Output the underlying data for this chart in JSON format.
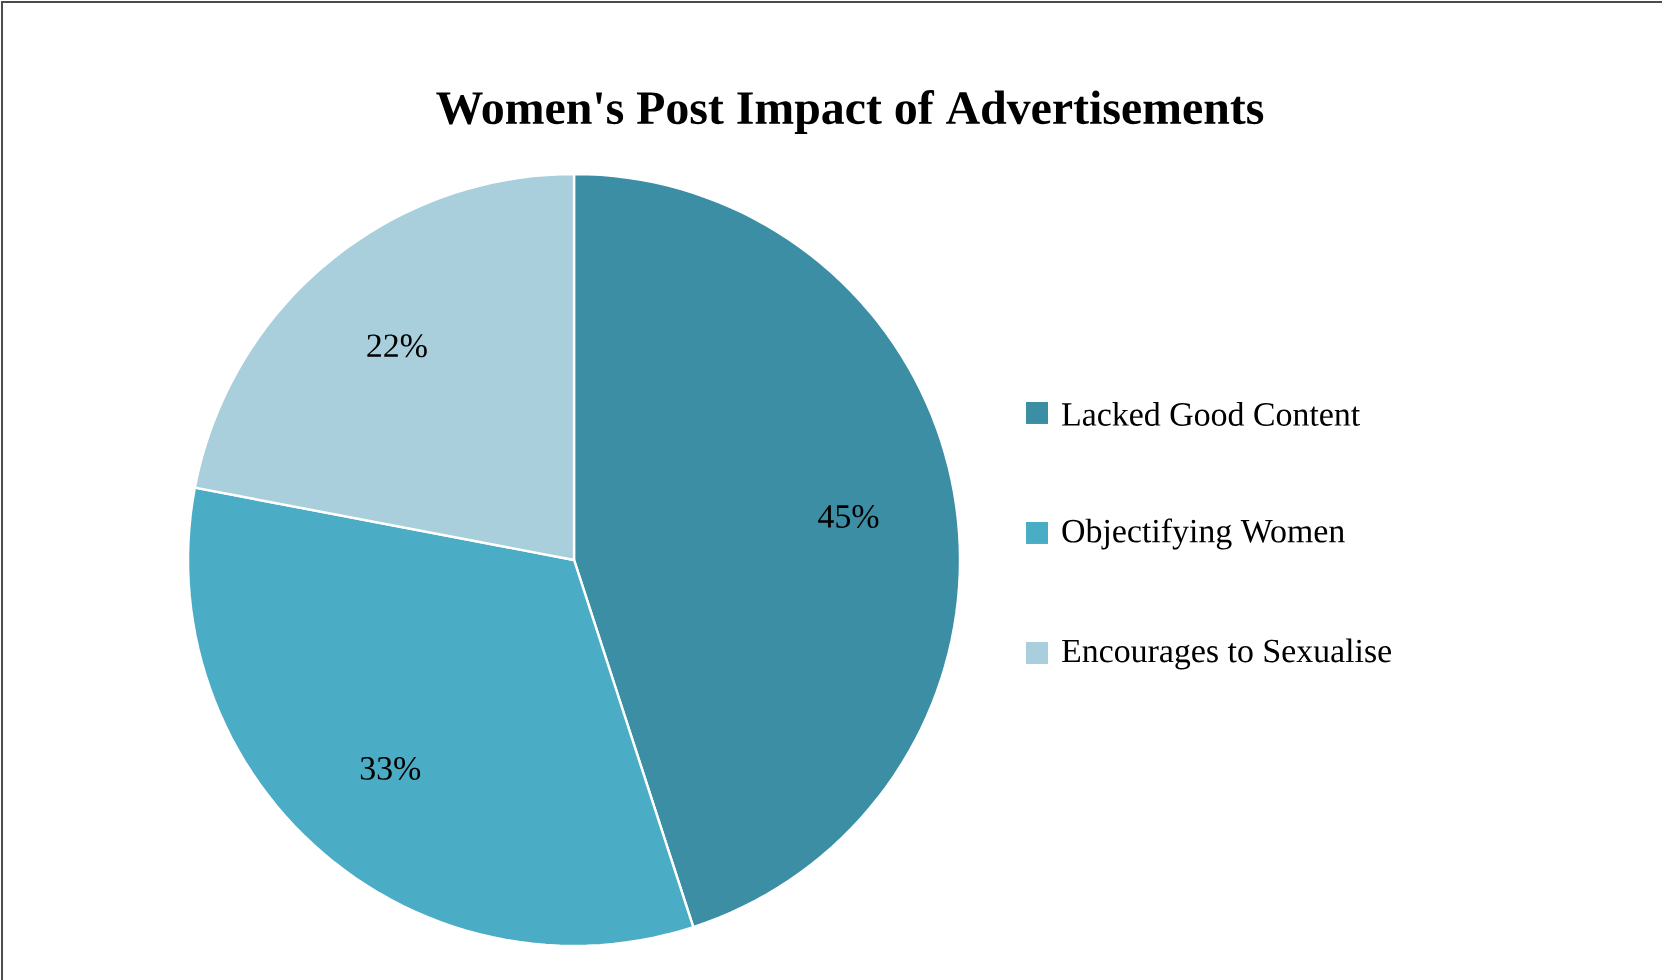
{
  "chart_data": {
    "type": "pie",
    "title": "Women's Post Impact of Advertisements",
    "categories": [
      "Lacked Good Content",
      "Objectifying Women",
      "Encourages to Sexualise"
    ],
    "values": [
      45,
      33,
      22
    ],
    "value_labels": [
      "45%",
      "33%",
      "22%"
    ],
    "colors": [
      "#3c8ea5",
      "#4bacc6",
      "#a9cfdc"
    ],
    "legend": "right"
  }
}
